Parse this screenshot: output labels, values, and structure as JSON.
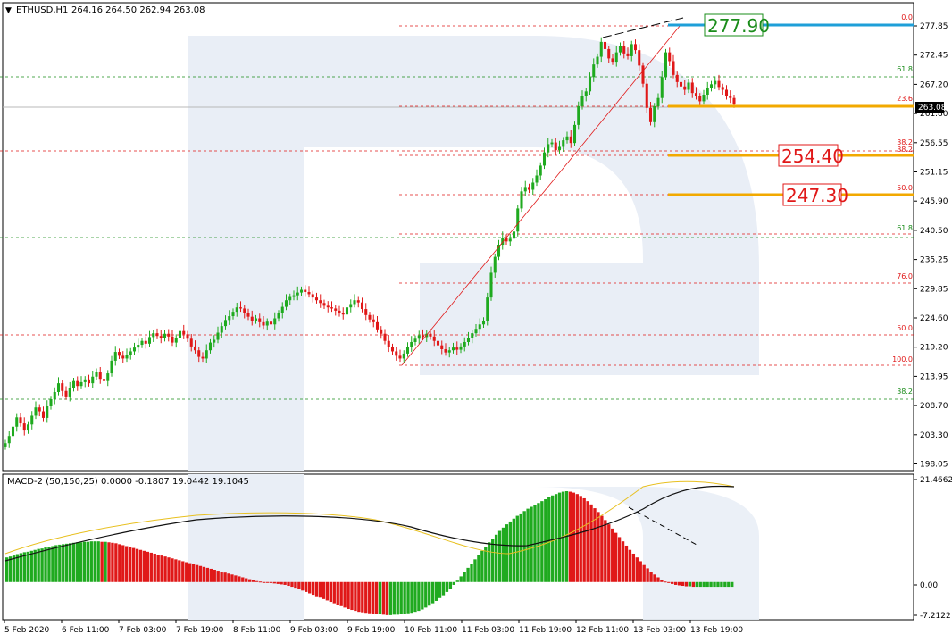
{
  "header": {
    "symbol": "ETHUSD,H1",
    "ohlc": "264.16 264.50 262.94 263.08"
  },
  "macd_header": "MACD-2 (50,150,25) 0.0000 -0.1807 19.0442 19.1045",
  "price_axis": {
    "ticks": [
      "277.85",
      "272.45",
      "267.20",
      "261.80",
      "256.55",
      "251.15",
      "245.90",
      "240.50",
      "235.25",
      "229.85",
      "224.60",
      "219.20",
      "213.95",
      "208.70",
      "203.30",
      "198.05"
    ],
    "current": "263.08"
  },
  "macd_axis": {
    "ticks": [
      "21.4662",
      "0.00",
      "-7.2122"
    ]
  },
  "time_axis": [
    "5 Feb 2020",
    "6 Feb 11:00",
    "7 Feb 03:00",
    "7 Feb 19:00",
    "8 Feb 11:00",
    "9 Feb 03:00",
    "9 Feb 19:00",
    "10 Feb 11:00",
    "11 Feb 03:00",
    "11 Feb 19:00",
    "12 Feb 11:00",
    "13 Feb 03:00",
    "13 Feb 19:00"
  ],
  "price_labels": [
    {
      "text": "277.90",
      "color": "#1a8c1a",
      "border": "#1a8c1a"
    },
    {
      "text": "254.40",
      "color": "#e01818",
      "border": "#e01818"
    },
    {
      "text": "247.30",
      "color": "#e01818",
      "border": "#e01818"
    }
  ],
  "fib_labels": [
    "0.0",
    "61.8",
    "23.6",
    "38.2",
    "38.2",
    "50.0",
    "61.8",
    "76.0",
    "50.0",
    "100.0",
    "38.2"
  ],
  "colors": {
    "bull": "#1faa1f",
    "bear": "#e01818",
    "signal": "#e8c020",
    "macd_line": "#111111",
    "fib_red": "#e01818",
    "fib_green": "#1a8c1a",
    "target_blue": "#1e9fd8",
    "target_orange": "#f2a900",
    "watermark": "#e9eef6"
  },
  "chart_data": [
    {
      "type": "candlestick",
      "title": "ETHUSD,H1",
      "x_ticks": [
        "5 Feb 2020",
        "6 Feb 11:00",
        "7 Feb 03:00",
        "7 Feb 19:00",
        "8 Feb 11:00",
        "9 Feb 03:00",
        "9 Feb 19:00",
        "10 Feb 11:00",
        "11 Feb 03:00",
        "11 Feb 19:00",
        "12 Feb 11:00",
        "13 Feb 03:00",
        "13 Feb 19:00"
      ],
      "ylim": [
        196.5,
        280.5
      ],
      "close": [
        201.5,
        202.8,
        204.5,
        206.2,
        205.1,
        203.8,
        204.9,
        206.5,
        208.0,
        207.3,
        206.1,
        208.2,
        209.5,
        210.8,
        212.4,
        211.0,
        210.0,
        211.5,
        212.8,
        211.9,
        212.6,
        213.1,
        212.4,
        213.6,
        214.5,
        213.2,
        212.8,
        214.2,
        216.5,
        218.1,
        217.4,
        216.9,
        217.6,
        218.2,
        218.9,
        219.4,
        220.1,
        219.6,
        220.8,
        221.5,
        221.0,
        220.6,
        221.4,
        220.9,
        219.8,
        220.7,
        221.9,
        221.3,
        220.5,
        219.1,
        218.4,
        217.2,
        216.9,
        218.4,
        219.8,
        220.3,
        221.6,
        222.8,
        223.9,
        224.6,
        225.4,
        226.2,
        226.0,
        225.1,
        224.5,
        223.8,
        224.2,
        223.5,
        222.9,
        223.6,
        223.1,
        224.2,
        225.1,
        226.3,
        227.5,
        228.1,
        228.4,
        228.9,
        229.4,
        229.0,
        228.6,
        228.0,
        227.5,
        227.0,
        226.5,
        226.2,
        226.0,
        225.6,
        225.1,
        224.9,
        226.2,
        226.8,
        227.5,
        227.1,
        225.9,
        224.8,
        224.0,
        223.5,
        222.2,
        221.4,
        220.1,
        219.0,
        218.2,
        217.4,
        216.9,
        217.8,
        219.0,
        219.9,
        220.5,
        221.1,
        220.8,
        221.4,
        220.9,
        220.1,
        219.3,
        218.6,
        218.0,
        218.4,
        218.9,
        218.5,
        219.1,
        219.9,
        220.6,
        221.5,
        222.3,
        223.1,
        223.8,
        228.0,
        232.5,
        235.4,
        237.6,
        238.9,
        238.2,
        238.7,
        240.0,
        244.2,
        247.3,
        248.1,
        247.6,
        248.9,
        250.2,
        252.0,
        254.4,
        255.9,
        256.2,
        254.8,
        255.4,
        256.6,
        257.3,
        256.1,
        259.4,
        262.8,
        264.6,
        265.5,
        268.1,
        270.4,
        271.8,
        274.5,
        273.2,
        271.5,
        270.9,
        272.6,
        273.8,
        272.4,
        271.9,
        274.1,
        273.0,
        270.2,
        266.9,
        262.5,
        259.9,
        262.8,
        264.3,
        268.1,
        272.6,
        271.0,
        268.5,
        267.2,
        266.4,
        265.8,
        267.1,
        265.2,
        264.6,
        263.7,
        264.9,
        266.1,
        266.8,
        267.4,
        266.3,
        265.8,
        264.6,
        264.3,
        263.1
      ]
    },
    {
      "type": "bar",
      "title": "MACD-2 (50,150,25)",
      "ylim": [
        -7.2122,
        21.4662
      ],
      "histogram": [
        5.2,
        5.4,
        5.6,
        5.9,
        6.1,
        6.3,
        6.4,
        6.6,
        6.8,
        7.0,
        7.1,
        7.3,
        7.4,
        7.6,
        7.8,
        7.9,
        8.0,
        8.1,
        8.2,
        8.3,
        8.4,
        8.4,
        8.5,
        8.5,
        8.6,
        8.6,
        8.6,
        8.5,
        8.5,
        8.4,
        8.3,
        8.2,
        8.0,
        7.8,
        7.6,
        7.4,
        7.2,
        7.0,
        6.8,
        6.6,
        6.4,
        6.2,
        6.0,
        5.8,
        5.6,
        5.4,
        5.2,
        5.0,
        4.8,
        4.6,
        4.4,
        4.2,
        4.0,
        3.8,
        3.6,
        3.4,
        3.2,
        3.0,
        2.8,
        2.6,
        2.4,
        2.2,
        2.0,
        1.8,
        1.6,
        1.4,
        1.2,
        1.0,
        0.8,
        0.6,
        0.4,
        0.2,
        0.1,
        0.0,
        -0.1,
        -0.2,
        -0.3,
        -0.4,
        -0.5,
        -0.6,
        -0.8,
        -1.0,
        -1.2,
        -1.5,
        -1.8,
        -2.1,
        -2.4,
        -2.7,
        -3.0,
        -3.3,
        -3.6,
        -3.9,
        -4.2,
        -4.5,
        -4.8,
        -5.1,
        -5.4,
        -5.7,
        -5.9,
        -6.1,
        -6.3,
        -6.4,
        -6.5,
        -6.6,
        -6.7,
        -6.8,
        -6.8,
        -6.9,
        -7.0,
        -7.0,
        -6.9,
        -6.9,
        -6.8,
        -6.7,
        -6.6,
        -6.5,
        -6.3,
        -6.1,
        -5.8,
        -5.4,
        -5.0,
        -4.5,
        -4.0,
        -3.4,
        -2.8,
        -2.1,
        -1.4,
        -0.6,
        0.3,
        1.2,
        2.1,
        3.0,
        3.9,
        4.8,
        5.7,
        6.6,
        7.5,
        8.4,
        9.2,
        10.0,
        10.8,
        11.5,
        12.2,
        12.8,
        13.4,
        14.0,
        14.5,
        15.0,
        15.5,
        15.9,
        16.3,
        16.7,
        17.1,
        17.5,
        17.9,
        18.3,
        18.6,
        18.9,
        19.1,
        19.2,
        19.1,
        18.9,
        18.6,
        18.2,
        17.7,
        17.1,
        16.4,
        15.6,
        14.8,
        14.0,
        13.1,
        12.2,
        11.3,
        10.4,
        9.5,
        8.6,
        7.7,
        6.8,
        6.0,
        5.2,
        4.4,
        3.6,
        2.9,
        2.2,
        1.6,
        1.0,
        0.5,
        0.1,
        -0.2,
        -0.4,
        -0.6,
        -0.7,
        -0.8,
        -0.9,
        -0.9,
        -1.0,
        -1.0,
        -1.0,
        -1.0,
        -1.0,
        -1.0,
        -1.0,
        -1.0,
        -1.0,
        -1.0,
        -1.0,
        -1.0
      ]
    }
  ]
}
